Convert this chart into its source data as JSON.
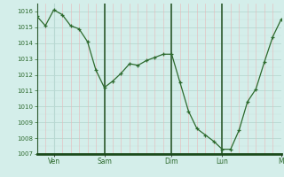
{
  "y": [
    1015.7,
    1015.1,
    1016.1,
    1015.8,
    1015.1,
    1014.9,
    1014.1,
    1012.3,
    1011.2,
    1011.6,
    1012.1,
    1012.7,
    1012.6,
    1012.9,
    1013.1,
    1013.3,
    1013.3,
    1011.5,
    1009.7,
    1008.6,
    1008.2,
    1007.8,
    1007.3,
    1007.3,
    1008.5,
    1010.3,
    1011.1,
    1012.8,
    1014.4,
    1015.5
  ],
  "ylim_lo": 1007,
  "ylim_hi": 1016.5,
  "yticks": [
    1007,
    1008,
    1009,
    1010,
    1011,
    1012,
    1013,
    1014,
    1015,
    1016
  ],
  "day_positions": [
    2,
    8,
    16,
    22,
    29
  ],
  "day_labels": [
    "Ven",
    "Sam",
    "Dim",
    "Lun",
    "M"
  ],
  "n_points": 30,
  "line_color": "#2d6a2d",
  "marker_color": "#2d6a2d",
  "bg_color": "#d4eeea",
  "grid_major_color": "#b8d8d2",
  "grid_minor_color": "#c8e4e0",
  "grid_red_color": "#e8b8b8",
  "border_color": "#2d5a2d",
  "tick_label_color": "#2d6a2d",
  "bottom_bar_color": "#1a4a1a"
}
